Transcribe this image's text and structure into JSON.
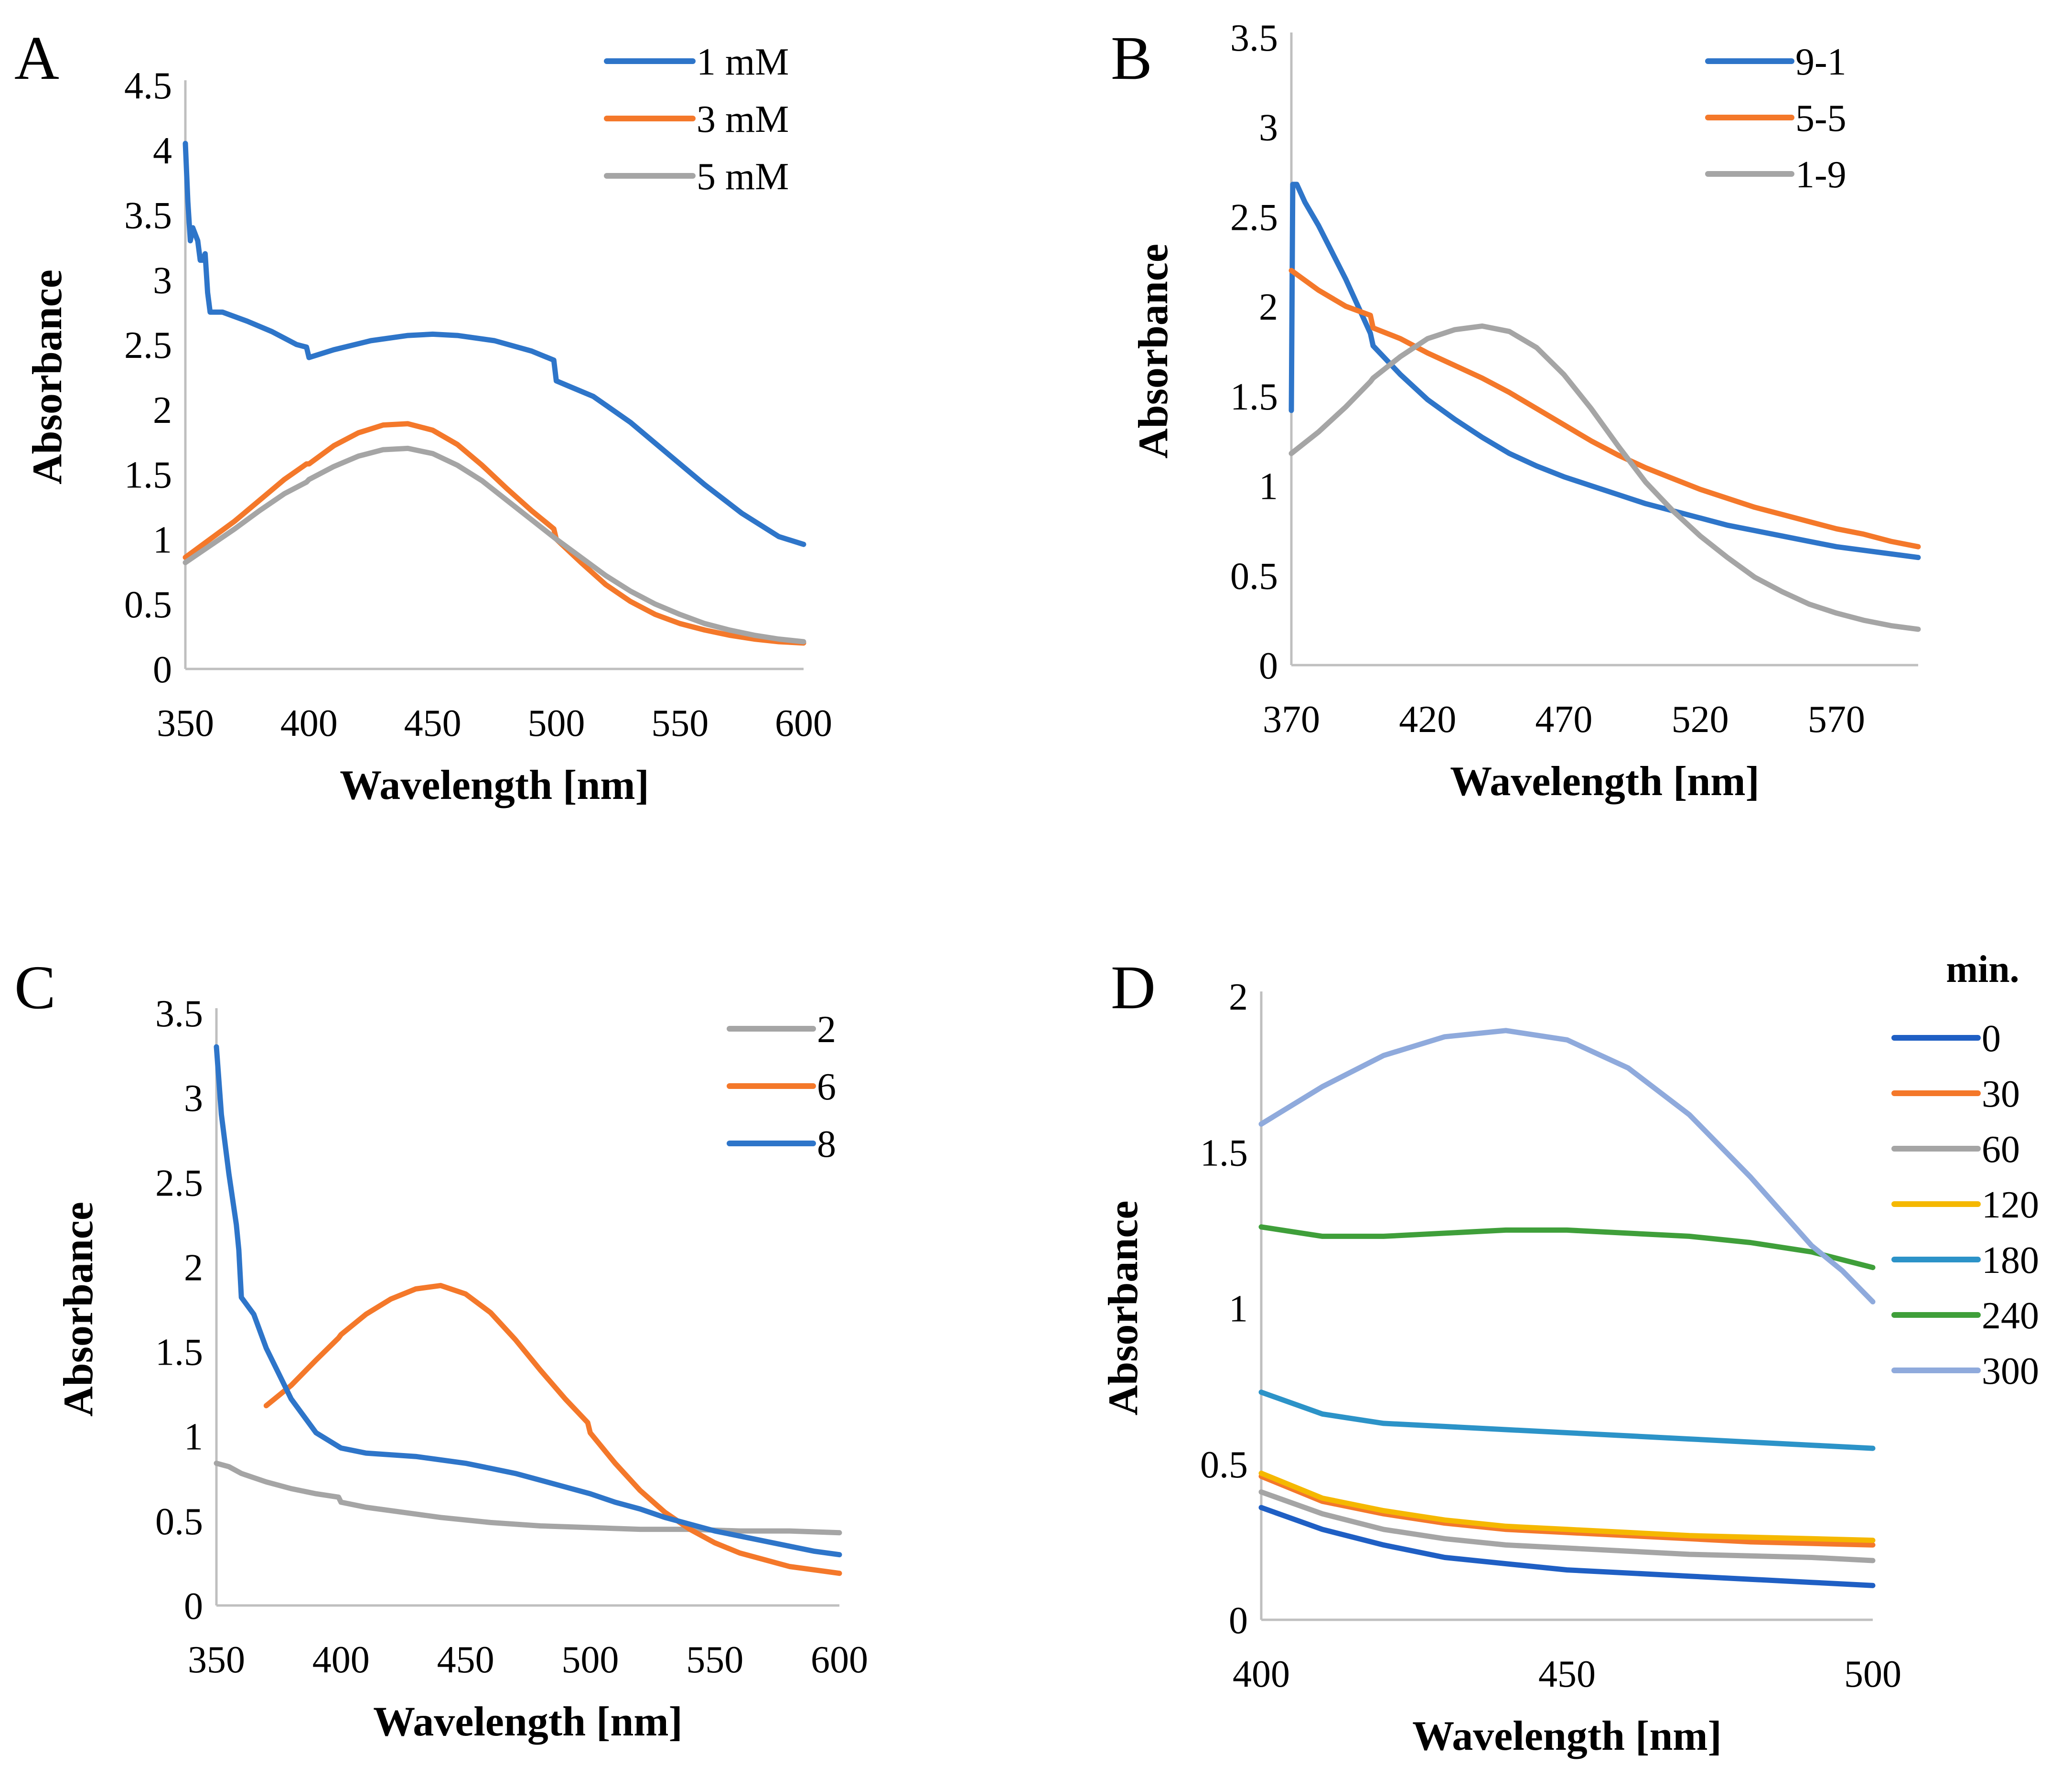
{
  "colors": {
    "blue": "#2e75c9",
    "orange": "#f4782a",
    "gray": "#a5a5a5",
    "darkblue": "#1f5fc4",
    "yellow": "#f5b800",
    "teal": "#2c93c8",
    "green": "#3f9f3a",
    "lightblue": "#8faadc"
  },
  "chart_data": [
    {
      "panel": "A",
      "type": "line",
      "xlabel": "Wavelength [nm]",
      "ylabel": "Absorbance",
      "xlim": [
        350,
        600
      ],
      "ylim": [
        0,
        4.5
      ],
      "xticks": [
        "350",
        "400",
        "450",
        "500",
        "550",
        "600"
      ],
      "yticks": [
        "0",
        "0.5",
        "1",
        "1.5",
        "2",
        "2.5",
        "3",
        "3.5",
        "4",
        "4.5"
      ],
      "legend_title": "",
      "series": [
        {
          "name": "1 mM",
          "color": "#2e75c9",
          "x": [
            350,
            351,
            352,
            353,
            355,
            356,
            357,
            358,
            359,
            360,
            365,
            375,
            385,
            395,
            399,
            400,
            410,
            425,
            440,
            450,
            460,
            475,
            490,
            499,
            500,
            505,
            515,
            530,
            545,
            560,
            575,
            590,
            600
          ],
          "y": [
            4.05,
            3.6,
            3.3,
            3.4,
            3.3,
            3.15,
            3.15,
            3.2,
            2.9,
            2.75,
            2.75,
            2.68,
            2.6,
            2.5,
            2.48,
            2.4,
            2.46,
            2.53,
            2.57,
            2.58,
            2.57,
            2.53,
            2.45,
            2.38,
            2.22,
            2.18,
            2.1,
            1.9,
            1.66,
            1.42,
            1.2,
            1.02,
            0.96
          ]
        },
        {
          "name": "3 mM",
          "color": "#f4782a",
          "x": [
            350,
            360,
            370,
            380,
            390,
            399,
            400,
            410,
            420,
            430,
            440,
            450,
            460,
            470,
            480,
            490,
            499,
            500,
            510,
            520,
            530,
            540,
            550,
            560,
            570,
            580,
            590,
            600
          ],
          "y": [
            0.86,
            1.0,
            1.14,
            1.3,
            1.46,
            1.58,
            1.58,
            1.72,
            1.82,
            1.88,
            1.89,
            1.84,
            1.73,
            1.57,
            1.39,
            1.22,
            1.08,
            1.0,
            0.82,
            0.65,
            0.52,
            0.42,
            0.35,
            0.3,
            0.26,
            0.23,
            0.21,
            0.2
          ]
        },
        {
          "name": "5 mM",
          "color": "#a5a5a5",
          "x": [
            350,
            360,
            370,
            380,
            390,
            399,
            400,
            410,
            420,
            430,
            440,
            450,
            460,
            470,
            480,
            490,
            500,
            510,
            520,
            530,
            540,
            550,
            560,
            570,
            580,
            590,
            600
          ],
          "y": [
            0.82,
            0.95,
            1.08,
            1.22,
            1.35,
            1.44,
            1.46,
            1.56,
            1.64,
            1.69,
            1.7,
            1.66,
            1.57,
            1.45,
            1.3,
            1.15,
            1.0,
            0.86,
            0.72,
            0.6,
            0.5,
            0.42,
            0.35,
            0.3,
            0.26,
            0.23,
            0.21
          ]
        }
      ]
    },
    {
      "panel": "B",
      "type": "line",
      "xlabel": "Wavelength [nm]",
      "ylabel": "Absorbance",
      "xlim": [
        370,
        600
      ],
      "ylim": [
        0,
        3.5
      ],
      "xticks": [
        "370",
        "420",
        "470",
        "520",
        "570"
      ],
      "yticks": [
        "0",
        "0.5",
        "1",
        "1.5",
        "2",
        "2.5",
        "3",
        "3.5"
      ],
      "legend_title": "",
      "series": [
        {
          "name": "9-1",
          "color": "#2e75c9",
          "x": [
            370,
            370.5,
            372,
            375,
            380,
            390,
            399,
            400,
            410,
            420,
            430,
            440,
            450,
            460,
            470,
            480,
            490,
            500,
            510,
            520,
            530,
            540,
            550,
            560,
            570,
            580,
            590,
            600
          ],
          "y": [
            1.42,
            2.68,
            2.68,
            2.58,
            2.45,
            2.15,
            1.85,
            1.78,
            1.62,
            1.48,
            1.37,
            1.27,
            1.18,
            1.11,
            1.05,
            1.0,
            0.95,
            0.9,
            0.86,
            0.82,
            0.78,
            0.75,
            0.72,
            0.69,
            0.66,
            0.64,
            0.62,
            0.6
          ]
        },
        {
          "name": "5-5",
          "color": "#f4782a",
          "x": [
            370,
            380,
            390,
            399,
            400,
            410,
            420,
            430,
            440,
            450,
            460,
            470,
            480,
            490,
            500,
            510,
            520,
            530,
            540,
            550,
            560,
            570,
            580,
            590,
            600
          ],
          "y": [
            2.2,
            2.09,
            2.0,
            1.95,
            1.88,
            1.82,
            1.74,
            1.67,
            1.6,
            1.52,
            1.43,
            1.34,
            1.25,
            1.17,
            1.1,
            1.04,
            0.98,
            0.93,
            0.88,
            0.84,
            0.8,
            0.76,
            0.73,
            0.69,
            0.66
          ]
        },
        {
          "name": "1-9",
          "color": "#a5a5a5",
          "x": [
            370,
            380,
            390,
            399,
            400,
            410,
            420,
            430,
            440,
            450,
            460,
            470,
            480,
            490,
            495,
            500,
            510,
            520,
            530,
            540,
            550,
            560,
            570,
            580,
            590,
            600
          ],
          "y": [
            1.18,
            1.3,
            1.44,
            1.58,
            1.6,
            1.72,
            1.82,
            1.87,
            1.89,
            1.86,
            1.77,
            1.62,
            1.43,
            1.22,
            1.12,
            1.02,
            0.86,
            0.72,
            0.6,
            0.49,
            0.41,
            0.34,
            0.29,
            0.25,
            0.22,
            0.2
          ]
        }
      ]
    },
    {
      "panel": "C",
      "type": "line",
      "xlabel": "Wavelength [nm]",
      "ylabel": "Absorbance",
      "xlim": [
        350,
        600
      ],
      "ylim": [
        0,
        3.5
      ],
      "xticks": [
        "350",
        "400",
        "450",
        "500",
        "550",
        "600"
      ],
      "yticks": [
        "0",
        "0.5",
        "1",
        "1.5",
        "2",
        "2.5",
        "3",
        "3.5"
      ],
      "legend_title": "",
      "series": [
        {
          "name": "2",
          "color": "#a5a5a5",
          "x": [
            350,
            355,
            360,
            370,
            380,
            390,
            399,
            400,
            410,
            420,
            440,
            460,
            480,
            500,
            520,
            540,
            560,
            580,
            600
          ],
          "y": [
            0.84,
            0.82,
            0.78,
            0.73,
            0.69,
            0.66,
            0.64,
            0.61,
            0.58,
            0.56,
            0.52,
            0.49,
            0.47,
            0.46,
            0.45,
            0.45,
            0.44,
            0.44,
            0.43
          ]
        },
        {
          "name": "6",
          "color": "#f4782a",
          "x": [
            370,
            380,
            390,
            399,
            400,
            410,
            420,
            430,
            440,
            450,
            460,
            470,
            480,
            490,
            499,
            500,
            510,
            520,
            530,
            540,
            550,
            560,
            570,
            580,
            590,
            600
          ],
          "y": [
            1.18,
            1.3,
            1.45,
            1.58,
            1.6,
            1.72,
            1.81,
            1.87,
            1.89,
            1.84,
            1.73,
            1.57,
            1.39,
            1.22,
            1.08,
            1.02,
            0.84,
            0.68,
            0.55,
            0.45,
            0.37,
            0.31,
            0.27,
            0.23,
            0.21,
            0.19
          ]
        },
        {
          "name": "8",
          "color": "#2e75c9",
          "x": [
            350,
            352,
            355,
            358,
            359,
            360,
            365,
            370,
            380,
            390,
            400,
            410,
            420,
            430,
            440,
            450,
            460,
            470,
            480,
            490,
            500,
            510,
            520,
            530,
            540,
            550,
            560,
            570,
            580,
            590,
            600
          ],
          "y": [
            3.3,
            2.9,
            2.55,
            2.25,
            2.1,
            1.82,
            1.72,
            1.52,
            1.22,
            1.02,
            0.93,
            0.9,
            0.89,
            0.88,
            0.86,
            0.84,
            0.81,
            0.78,
            0.74,
            0.7,
            0.66,
            0.61,
            0.57,
            0.52,
            0.48,
            0.44,
            0.41,
            0.38,
            0.35,
            0.32,
            0.3
          ]
        }
      ]
    },
    {
      "panel": "D",
      "type": "line",
      "xlabel": "Wavelength [nm]",
      "ylabel": "Absorbance",
      "xlim": [
        400,
        500
      ],
      "ylim": [
        0,
        2
      ],
      "xticks": [
        "400",
        "450",
        "500"
      ],
      "yticks": [
        "0",
        "0.5",
        "1",
        "1.5",
        "2"
      ],
      "legend_title": "min.",
      "series": [
        {
          "name": "0",
          "color": "#1f5fc4",
          "x": [
            400,
            410,
            420,
            430,
            440,
            450,
            460,
            470,
            480,
            490,
            500
          ],
          "y": [
            0.36,
            0.29,
            0.24,
            0.2,
            0.18,
            0.16,
            0.15,
            0.14,
            0.13,
            0.12,
            0.11
          ]
        },
        {
          "name": "30",
          "color": "#f4782a",
          "x": [
            400,
            410,
            420,
            430,
            440,
            450,
            460,
            470,
            480,
            490,
            500
          ],
          "y": [
            0.46,
            0.38,
            0.34,
            0.31,
            0.29,
            0.28,
            0.27,
            0.26,
            0.25,
            0.245,
            0.24
          ]
        },
        {
          "name": "60",
          "color": "#a5a5a5",
          "x": [
            400,
            410,
            420,
            430,
            440,
            450,
            460,
            470,
            480,
            490,
            500
          ],
          "y": [
            0.41,
            0.34,
            0.29,
            0.26,
            0.24,
            0.23,
            0.22,
            0.21,
            0.205,
            0.2,
            0.19
          ]
        },
        {
          "name": "120",
          "color": "#f5b800",
          "x": [
            400,
            410,
            420,
            430,
            440,
            450,
            460,
            470,
            480,
            490,
            500
          ],
          "y": [
            0.47,
            0.39,
            0.35,
            0.32,
            0.3,
            0.29,
            0.28,
            0.27,
            0.265,
            0.26,
            0.255
          ]
        },
        {
          "name": "180",
          "color": "#2c93c8",
          "x": [
            400,
            410,
            420,
            430,
            440,
            450,
            460,
            470,
            480,
            490,
            500
          ],
          "y": [
            0.73,
            0.66,
            0.63,
            0.62,
            0.61,
            0.6,
            0.59,
            0.58,
            0.57,
            0.56,
            0.55
          ]
        },
        {
          "name": "240",
          "color": "#3f9f3a",
          "x": [
            400,
            410,
            420,
            430,
            440,
            450,
            460,
            470,
            480,
            490,
            500
          ],
          "y": [
            1.26,
            1.23,
            1.23,
            1.24,
            1.25,
            1.25,
            1.24,
            1.23,
            1.21,
            1.18,
            1.13
          ]
        },
        {
          "name": "300",
          "color": "#8faadc",
          "x": [
            400,
            410,
            420,
            430,
            440,
            450,
            460,
            470,
            480,
            490,
            495,
            498,
            500
          ],
          "y": [
            1.59,
            1.71,
            1.81,
            1.87,
            1.89,
            1.86,
            1.77,
            1.62,
            1.42,
            1.2,
            1.12,
            1.06,
            1.02
          ]
        }
      ]
    }
  ]
}
